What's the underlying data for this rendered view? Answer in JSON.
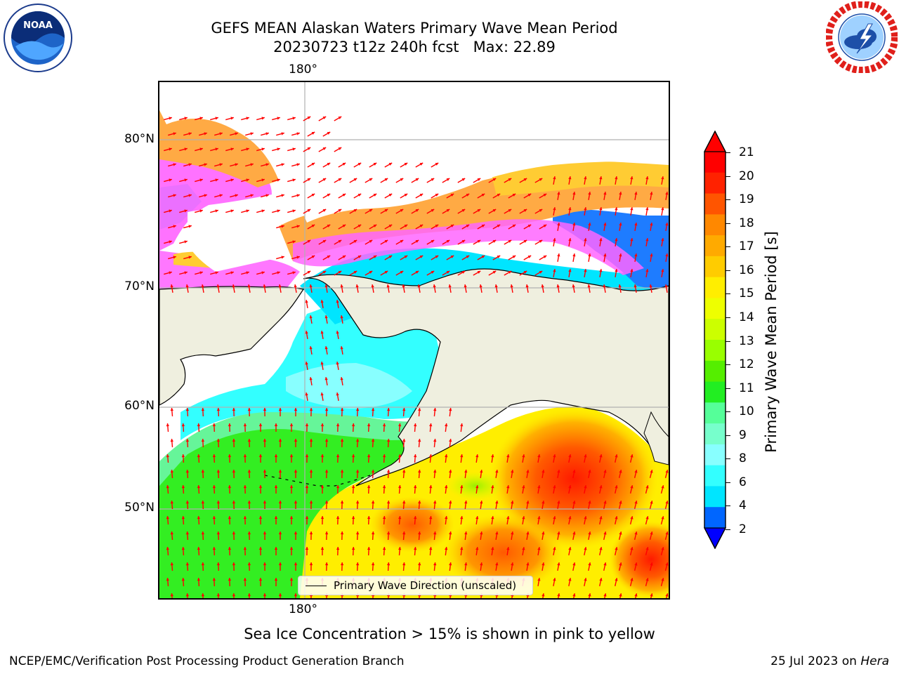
{
  "title_line1": "GEFS MEAN Alaskan Waters Primary Wave Mean Period",
  "title_line2": "20230723 t12z 240h fcst   Max: 22.89",
  "logos": {
    "left": "noaa-logo",
    "left_text": "NOAA",
    "right": "nws-logo"
  },
  "map": {
    "lon_label_top": "180°",
    "lon_label_bottom": "180°",
    "lat_labels": [
      "80°N",
      "70°N",
      "60°N",
      "50°N"
    ],
    "land_color": "#efefdf",
    "arrow_color": "#ff0000",
    "legend_entry": "Primary Wave Direction (unscaled)"
  },
  "colorbar": {
    "label": "Primary Wave Mean Period [s]",
    "ticks": [
      "21",
      "20",
      "19",
      "18",
      "17",
      "16",
      "15",
      "14",
      "13",
      "12",
      "11",
      "10",
      "9",
      "8",
      "6",
      "4",
      "2"
    ],
    "colors_top_to_bottom": [
      "#ff0000",
      "#ff2200",
      "#ff5500",
      "#ff8800",
      "#ffaa00",
      "#ffcc00",
      "#ffee00",
      "#eeff00",
      "#ccff00",
      "#99ff00",
      "#55ee00",
      "#22ee22",
      "#55ff99",
      "#77ffcc",
      "#88ffff",
      "#33ffff",
      "#00e5ff",
      "#0066ff"
    ],
    "max_arrow_color": "#ff0000",
    "min_arrow_color": "#0000ff"
  },
  "caption": "Sea Ice Concentration > 15% is shown in pink to yellow",
  "footer_left": "NCEP/EMC/Verification Post Processing Product Generation Branch",
  "footer_right_date": "25 Jul 2023 on",
  "footer_right_host": "Hera"
}
